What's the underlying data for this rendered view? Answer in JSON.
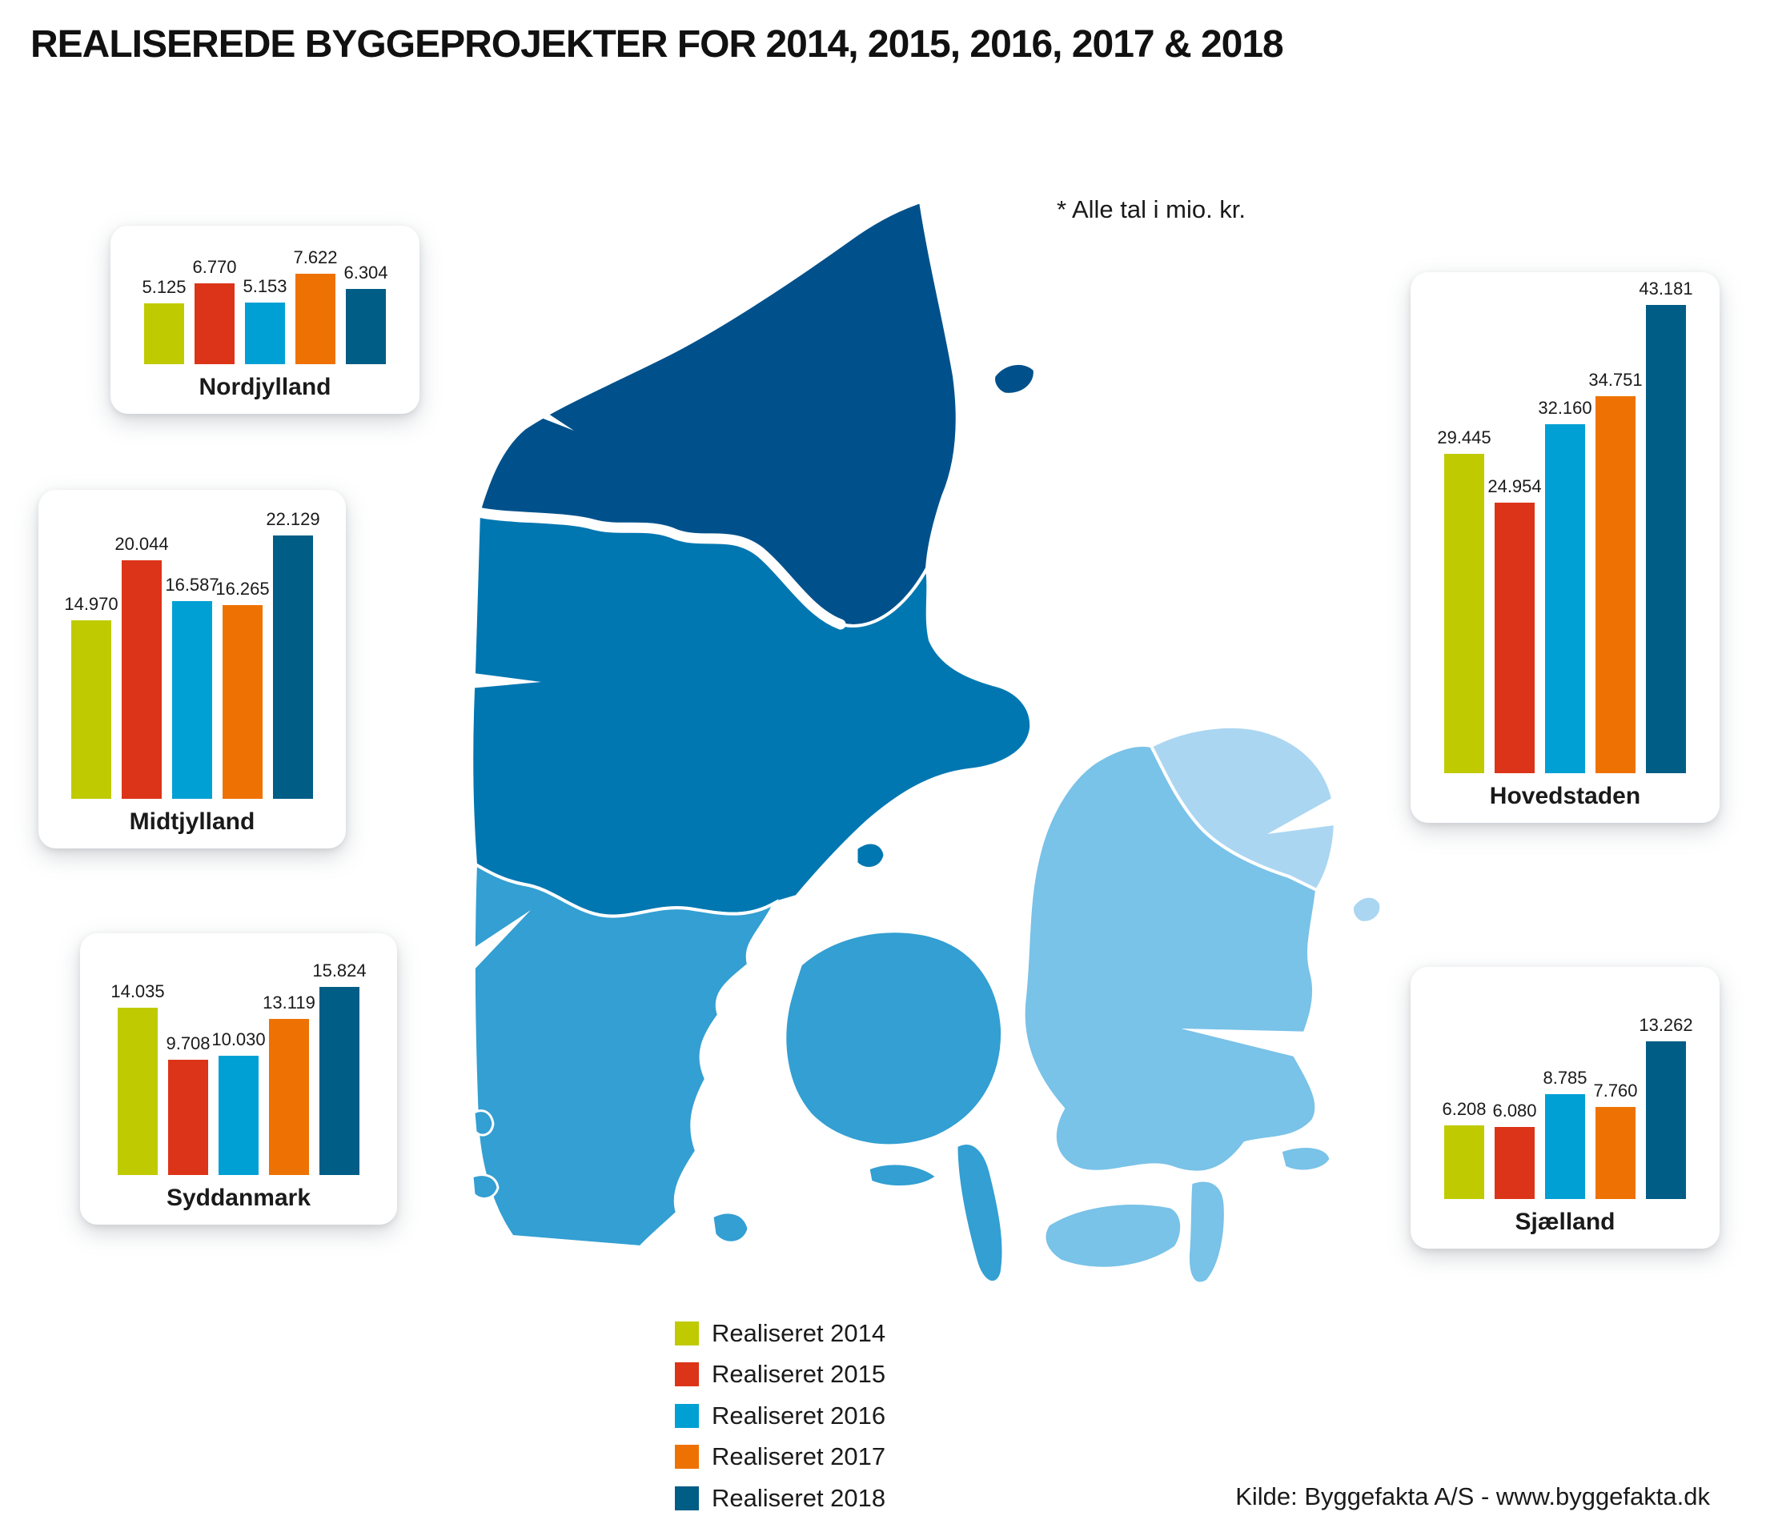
{
  "title": "REALISEREDE BYGGEPROJEKTER FOR 2014, 2015, 2016, 2017 & 2018",
  "note": "* Alle tal i mio. kr.",
  "source": "Kilde: Byggefakta A/S - www.byggefakta.dk",
  "legend": [
    {
      "label": "Realiseret 2014",
      "color": "#bfcb00"
    },
    {
      "label": "Realiseret 2015",
      "color": "#dc3418"
    },
    {
      "label": "Realiseret 2016",
      "color": "#00a0d4"
    },
    {
      "label": "Realiseret 2017",
      "color": "#ee7203"
    },
    {
      "label": "Realiseret 2018",
      "color": "#005d85"
    }
  ],
  "chart_data": {
    "type": "bar",
    "unit": "mio. kr.",
    "series_labels": [
      "Realiseret 2014",
      "Realiseret 2015",
      "Realiseret 2016",
      "Realiseret 2017",
      "Realiseret 2018"
    ],
    "colors": [
      "#bfcb00",
      "#dc3418",
      "#00a0d4",
      "#ee7203",
      "#005d85"
    ],
    "regions": [
      {
        "name": "Nordjylland",
        "values": [
          5125,
          6770,
          5153,
          7622,
          6304
        ],
        "labels": [
          "5.125",
          "6.770",
          "5.153",
          "7.622",
          "6.304"
        ]
      },
      {
        "name": "Midtjylland",
        "values": [
          14970,
          20044,
          16587,
          16265,
          22129
        ],
        "labels": [
          "14.970",
          "20.044",
          "16.587",
          "16.265",
          "22.129"
        ]
      },
      {
        "name": "Syddanmark",
        "values": [
          14035,
          9708,
          10030,
          13119,
          15824
        ],
        "labels": [
          "14.035",
          "9.708",
          "10.030",
          "13.119",
          "15.824"
        ]
      },
      {
        "name": "Hovedstaden",
        "values": [
          29445,
          24954,
          32160,
          34751,
          43181
        ],
        "labels": [
          "29.445",
          "24.954",
          "32.160",
          "34.751",
          "43.181"
        ]
      },
      {
        "name": "Sjælland",
        "values": [
          6208,
          6080,
          8785,
          7760,
          13262
        ],
        "labels": [
          "6.208",
          "6.080",
          "8.785",
          "7.760",
          "13.262"
        ]
      }
    ]
  },
  "map": {
    "region_colors": {
      "nordjylland": "#00518b",
      "midtjylland": "#0077b1",
      "syddanmark": "#339fd2",
      "sjaelland": "#79c2e8",
      "hovedstaden": "#abd6f2"
    }
  }
}
